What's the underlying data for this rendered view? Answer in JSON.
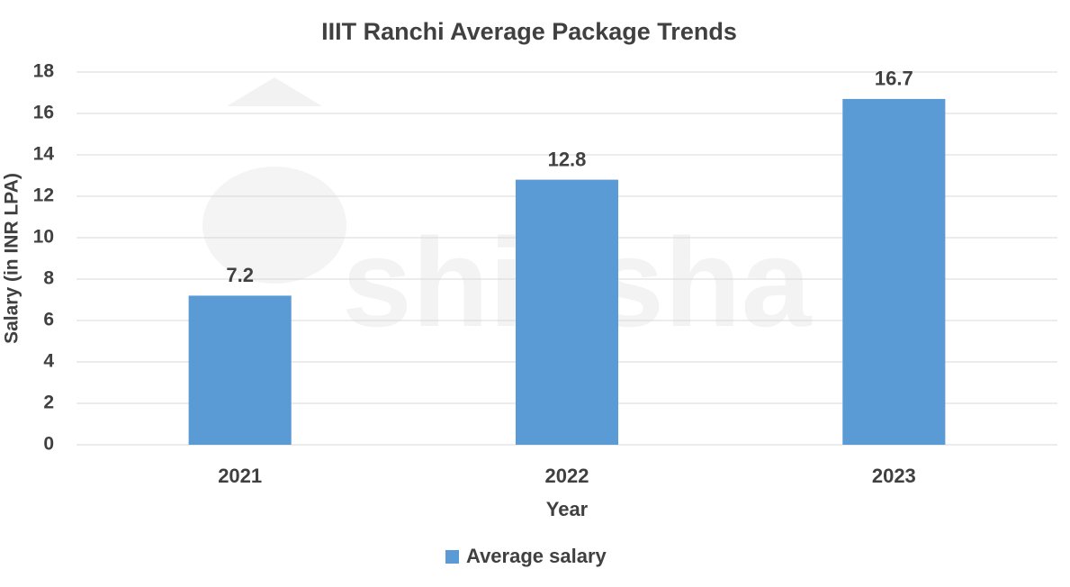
{
  "chart_data": {
    "type": "bar",
    "title": "IIIT Ranchi Average Package Trends",
    "watermark": "shiksha",
    "x_label": "Year",
    "y_label": "Salary (in INR LPA)",
    "categories": [
      "2021",
      "2022",
      "2023"
    ],
    "series": [
      {
        "name": "Average salary",
        "color": "#5b9bd5",
        "values": [
          7.2,
          12.8,
          16.7
        ]
      }
    ],
    "ylim": [
      0,
      18
    ],
    "yticks": [
      0,
      2,
      4,
      6,
      8,
      10,
      12,
      14,
      16,
      18
    ],
    "grid": true,
    "legend": "bottom",
    "data_labels": true
  }
}
